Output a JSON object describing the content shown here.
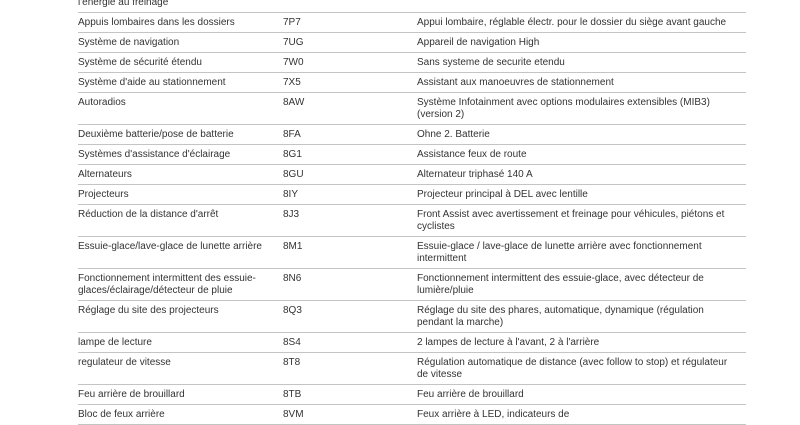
{
  "table": {
    "rows": [
      {
        "feature": "l'énergie au freinage",
        "code": "",
        "description": ""
      },
      {
        "feature": "Appuis lombaires dans les dossiers",
        "code": "7P7",
        "description": "Appui lombaire, réglable électr.  pour  le dossier du siège avant gauche"
      },
      {
        "feature": "Système de navigation",
        "code": "7UG",
        "description": "Appareil de navigation High"
      },
      {
        "feature": "Système de sécurité étendu",
        "code": "7W0",
        "description": "Sans systeme de securite etendu"
      },
      {
        "feature": "Système d'aide au stationnement",
        "code": "7X5",
        "description": "Assistant aux manoeuvres de  stationnement"
      },
      {
        "feature": "Autoradios",
        "code": "8AW",
        "description": "Système Infotainment avec options  modulaires extensibles (MIB3)  (version 2)"
      },
      {
        "feature": "Deuxième batterie/pose de batterie",
        "code": "8FA",
        "description": "Ohne 2. Batterie"
      },
      {
        "feature": "Systèmes d'assistance d'éclairage",
        "code": "8G1",
        "description": "Assistance feux de route"
      },
      {
        "feature": "Alternateurs",
        "code": "8GU",
        "description": "Alternateur triphasé 140 A"
      },
      {
        "feature": "Projecteurs",
        "code": "8IY",
        "description": "Projecteur principal à DEL avec lentille"
      },
      {
        "feature": "Réduction de la distance d'arrêt",
        "code": "8J3",
        "description": "Front Assist avec avertissement et  freinage pour véhicules, piétons et  cyclistes"
      },
      {
        "feature": "Essuie-glace/lave-glace de lunette arrière",
        "code": "8M1",
        "description": "Essuie-glace / lave-glace de lunette  arrière avec fonctionnement intermittent"
      },
      {
        "feature": "Fonctionnement intermittent des essuie-glaces/éclairage/détecteur de pluie",
        "code": "8N6",
        "description": "Fonctionnement intermittent des  essuie-glace, avec détecteur de  lumière/pluie"
      },
      {
        "feature": "Réglage du site des projecteurs",
        "code": "8Q3",
        "description": "Réglage du site des phares, automatique,  dynamique (régulation pendant la  marche)"
      },
      {
        "feature": "lampe de lecture",
        "code": "8S4",
        "description": "2 lampes de lecture à l'avant, 2 à  l'arrière"
      },
      {
        "feature": "regulateur de vitesse",
        "code": "8T8",
        "description": "Régulation automatique de distance (avec  follow to stop) et régulateur de vitesse"
      },
      {
        "feature": "Feu arrière de brouillard",
        "code": "8TB",
        "description": "Feu arrière de brouillard"
      },
      {
        "feature": "Bloc de feux arrière",
        "code": "8VM",
        "description": "Feux arrière à LED, indicateurs de"
      }
    ]
  }
}
